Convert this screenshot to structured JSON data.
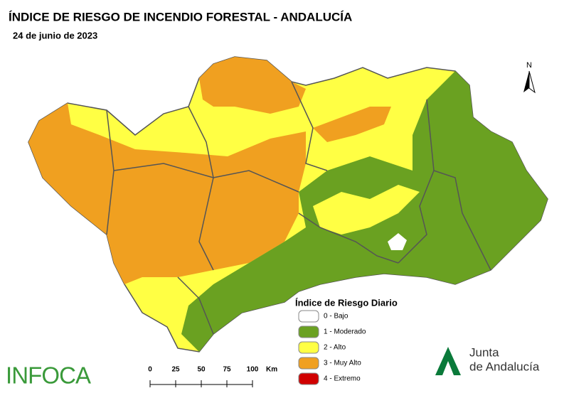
{
  "header": {
    "title": "ÍNDICE DE RIESGO DE INCENDIO FORESTAL - ANDALUCÍA",
    "date": "24 de junio de 2023"
  },
  "north": "N",
  "legend": {
    "title": "Índice de Riesgo Diario",
    "items": [
      {
        "label": "0 - Bajo",
        "color": "#ffffff"
      },
      {
        "label": "1 - Moderado",
        "color": "#6aa121"
      },
      {
        "label": "2 - Alto",
        "color": "#ffff44"
      },
      {
        "label": "3 - Muy Alto",
        "color": "#f0a020"
      },
      {
        "label": "4 - Extremo",
        "color": "#d00000"
      }
    ]
  },
  "scale": {
    "ticks": [
      0,
      25,
      50,
      75,
      100
    ],
    "unit": "Km"
  },
  "logos": {
    "infoca": "INFOCA",
    "junta_line1": "Junta",
    "junta_line2": "de Andalucía"
  }
}
